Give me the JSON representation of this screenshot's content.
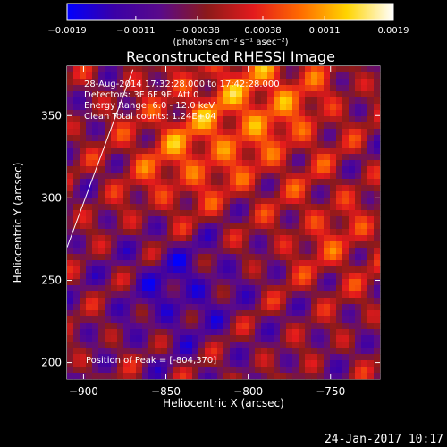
{
  "chart_data": {
    "type": "heatmap",
    "title": "Reconstructed RHESSI Image",
    "xlabel": "Heliocentric X (arcsec)",
    "ylabel": "Heliocentric Y (arcsec)",
    "xlim": [
      -910,
      -720
    ],
    "ylim": [
      190,
      380
    ],
    "x_ticks": [
      -900,
      -850,
      -800,
      -750
    ],
    "y_ticks": [
      200,
      250,
      300,
      350
    ],
    "x_tick_labels": [
      "−900",
      "−850",
      "−800",
      "−750"
    ],
    "y_tick_labels": [
      "200",
      "250",
      "300",
      "350"
    ],
    "colorbar": {
      "min": -0.0019,
      "max": 0.0019,
      "ticks": [
        -0.0019,
        -0.0011,
        -0.00038,
        0.00038,
        0.0011,
        0.0019
      ],
      "tick_labels": [
        "−0.0019",
        "−0.0011",
        "−0.00038",
        "0.00038",
        "0.0011",
        "0.0019"
      ],
      "unit_label": "(photons cm⁻² s⁻¹ asec⁻²)",
      "colors": [
        "#0000ff",
        "#3a00a8",
        "#5a0a8a",
        "#8c1a1a",
        "#e31a1c",
        "#ff6a00",
        "#ffd400",
        "#ffffff"
      ]
    },
    "annotations": [
      "28-Aug-2014 17:32:28.000 to 17:42:28.000",
      "Detectors: 3F 6F 9F, Att 0",
      "Energy Range: 6.0 - 12.0 keV",
      "Clean    Total counts: 1.24E+04"
    ],
    "peak_label": "Position of Peak = [-804,370]",
    "limb_line": [
      {
        "x": -910,
        "y": 270
      },
      {
        "x": -870,
        "y": 378
      }
    ],
    "footer_date": "24-Jan-2017 10:17"
  }
}
